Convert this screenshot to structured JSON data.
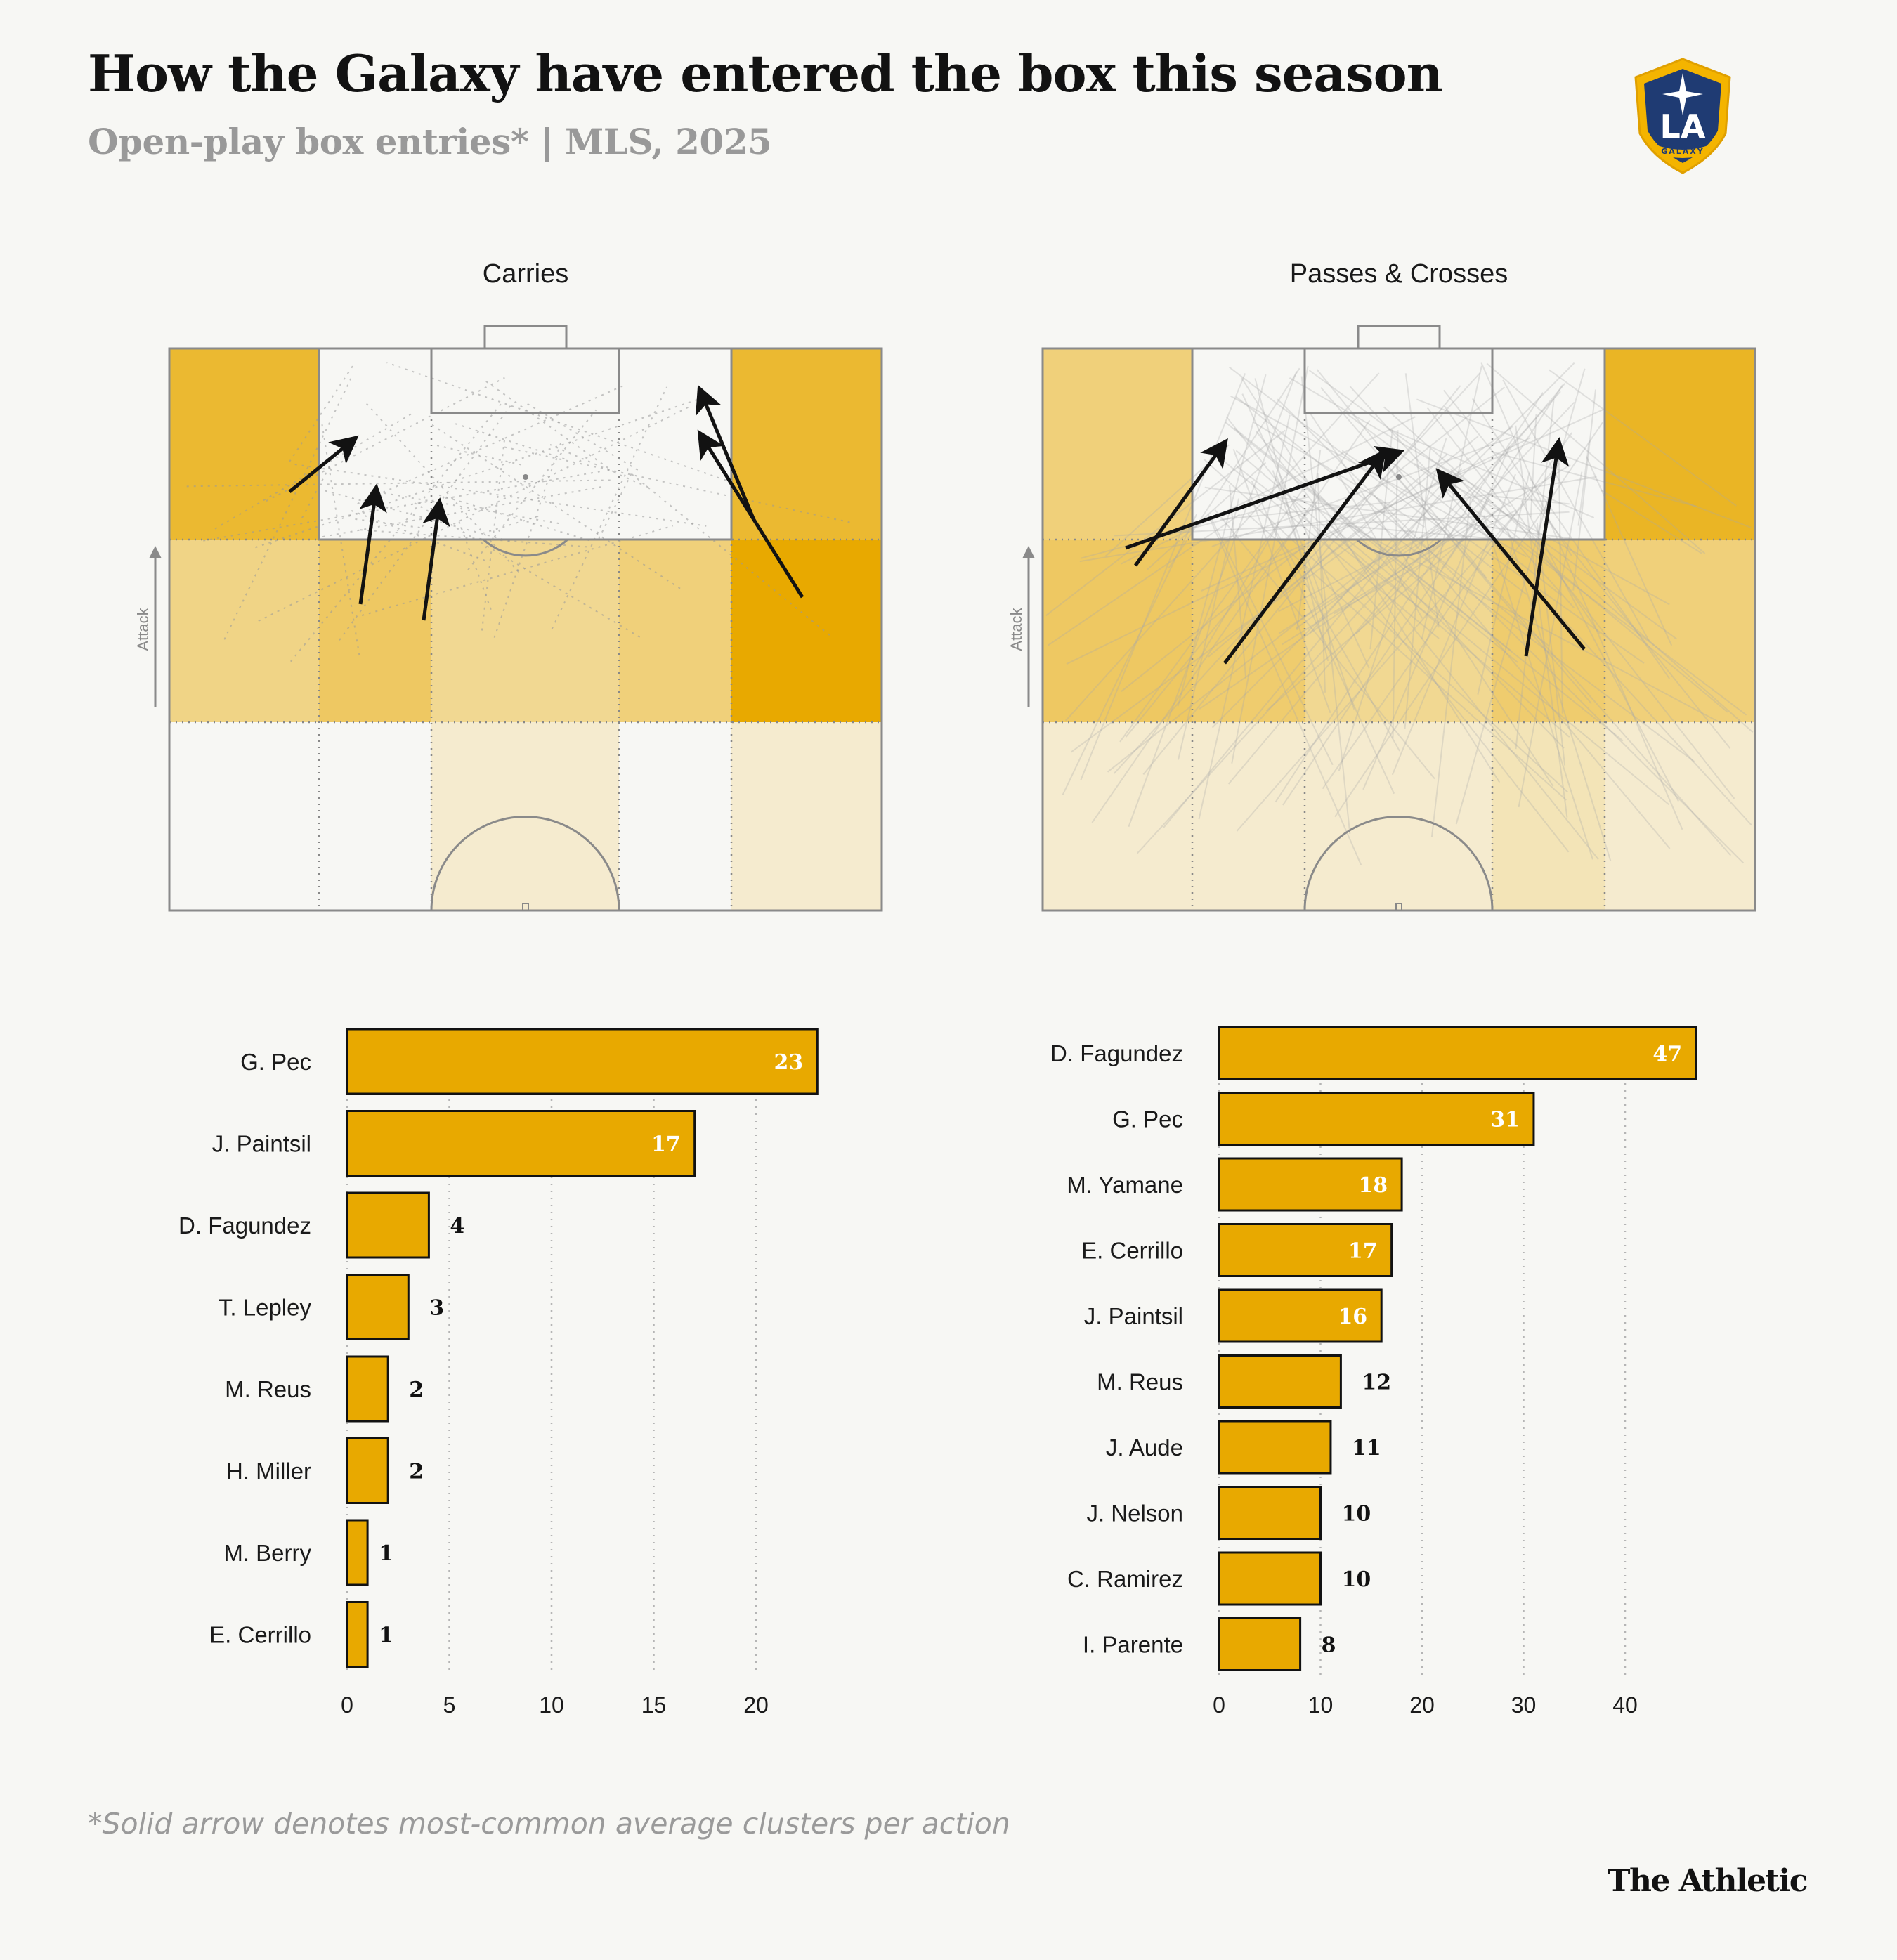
{
  "header": {
    "title": "How the Galaxy have entered the box this season",
    "subtitle": "Open-play box entries* | MLS, 2025",
    "logo_text": "LA",
    "logo_subtext": "GALAXY"
  },
  "footer": {
    "note": "*Solid arrow denotes most-common average clusters per action",
    "brand": "The Athletic"
  },
  "colors": {
    "bar_fill": "#e8a900",
    "bar_stroke": "#121212",
    "zone_dark": "#e8a900",
    "value_light": "#ffffff",
    "value_dark": "#121212"
  },
  "pitch": {
    "attack_label": "Attack",
    "carries": {
      "title": "Carries",
      "zone_intensity": [
        [
          0.8,
          0.0,
          0.0,
          0.0,
          0.8
        ],
        [
          0.45,
          0.6,
          0.4,
          0.5,
          1.0
        ],
        [
          0.0,
          0.0,
          0.15,
          0.0,
          0.15
        ]
      ]
    },
    "passes": {
      "title": "Passes & Crosses",
      "zone_intensity": [
        [
          0.5,
          0.0,
          0.0,
          0.0,
          0.85
        ],
        [
          0.6,
          0.55,
          0.4,
          0.55,
          0.5
        ],
        [
          0.15,
          0.15,
          0.15,
          0.25,
          0.15
        ]
      ]
    }
  },
  "chart_data": [
    {
      "type": "bar",
      "title": "Carries",
      "categories": [
        "G. Pec",
        "J. Paintsil",
        "D. Fagundez",
        "T. Lepley",
        "M. Reus",
        "H. Miller",
        "M. Berry",
        "E. Cerrillo"
      ],
      "values": [
        23,
        17,
        4,
        3,
        2,
        2,
        1,
        1
      ],
      "xlim": [
        0,
        25
      ],
      "xticks": [
        0,
        5,
        10,
        15,
        20
      ],
      "grid": true,
      "orientation": "horizontal"
    },
    {
      "type": "bar",
      "title": "Passes & Crosses",
      "categories": [
        "D. Fagundez",
        "G. Pec",
        "M. Yamane",
        "E. Cerrillo",
        "J. Paintsil",
        "M. Reus",
        "J. Aude",
        "J. Nelson",
        "C. Ramirez",
        "I. Parente"
      ],
      "values": [
        47,
        31,
        18,
        17,
        16,
        12,
        11,
        10,
        10,
        8
      ],
      "xlim": [
        0,
        50
      ],
      "xticks": [
        0,
        10,
        20,
        30,
        40
      ],
      "grid": true,
      "orientation": "horizontal"
    }
  ]
}
